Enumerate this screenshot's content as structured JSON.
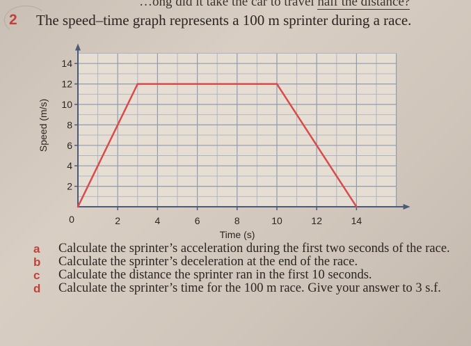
{
  "header": {
    "top_line_prefix": "…ong did it take the car to travel ",
    "top_line_underlined": "half the distance?",
    "question_number": "2",
    "question_text": "The speed–time graph represents a 100 m sprinter during a race."
  },
  "chart_data": {
    "type": "line",
    "xlabel": "Time (s)",
    "ylabel": "Speed (m/s)",
    "xlim": [
      0,
      16
    ],
    "ylim": [
      0,
      15
    ],
    "x_ticks": [
      2,
      4,
      6,
      8,
      10,
      12,
      14
    ],
    "y_ticks": [
      2,
      4,
      6,
      8,
      10,
      12,
      14
    ],
    "origin_label": "0",
    "grid": true,
    "line_color": "#d94a4a",
    "series": [
      {
        "x": [
          0,
          3,
          10,
          14
        ],
        "y": [
          0,
          12,
          12,
          0
        ]
      }
    ]
  },
  "parts": [
    {
      "letter": "a",
      "text": "Calculate the sprinter’s acceleration during the first two seconds of the race."
    },
    {
      "letter": "b",
      "text": "Calculate the sprinter’s deceleration at the end of the race."
    },
    {
      "letter": "c",
      "text": "Calculate the distance the sprinter ran in the first 10 seconds."
    },
    {
      "letter": "d",
      "text": "Calculate the sprinter’s time for the 100 m race. Give your answer to 3 s.f."
    }
  ]
}
